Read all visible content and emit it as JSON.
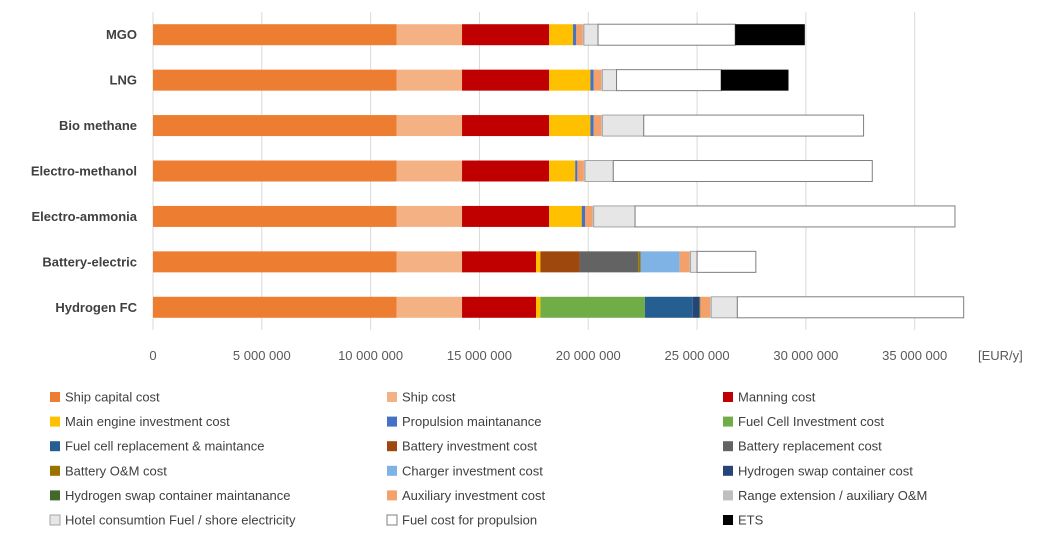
{
  "chart_data": {
    "type": "bar",
    "orientation": "horizontal",
    "stacked": true,
    "title": "",
    "xlabel": "",
    "x_unit": "[EUR/y]",
    "ylabel": "",
    "xlim": [
      0,
      38000000
    ],
    "x_ticks": [
      0,
      5000000,
      10000000,
      15000000,
      20000000,
      25000000,
      30000000,
      35000000
    ],
    "x_tick_labels": [
      "0",
      "5 000 000",
      "10 000 000",
      "15 000 000",
      "20 000 000",
      "25 000 000",
      "30 000 000",
      "35 000 000"
    ],
    "grid": "vertical",
    "legend_position": "bottom",
    "categories": [
      "MGO",
      "LNG",
      "Bio methane",
      "Electro-methanol",
      "Electro-ammonia",
      "Battery-electric",
      "Hydrogen FC"
    ],
    "series": [
      {
        "name": "Ship capital cost",
        "color": "#ED7D31",
        "border": "",
        "values": [
          11200000,
          11200000,
          11200000,
          11200000,
          11200000,
          11200000,
          11200000
        ]
      },
      {
        "name": "Ship cost",
        "color": "#F4B183",
        "border": "",
        "values": [
          3000000,
          3000000,
          3000000,
          3000000,
          3000000,
          3000000,
          3000000
        ]
      },
      {
        "name": "Manning cost",
        "color": "#C00000",
        "border": "",
        "values": [
          4000000,
          4000000,
          4000000,
          4000000,
          4000000,
          3400000,
          3400000
        ]
      },
      {
        "name": "Main engine investment cost",
        "color": "#FFC000",
        "border": "",
        "values": [
          1100000,
          1900000,
          1900000,
          1200000,
          1500000,
          200000,
          200000
        ]
      },
      {
        "name": "Propulsion maintanance",
        "color": "#4472C4",
        "border": "",
        "values": [
          150000,
          150000,
          150000,
          100000,
          150000,
          0,
          0
        ]
      },
      {
        "name": "Fuel Cell Investment cost",
        "color": "#70AD47",
        "border": "",
        "values": [
          0,
          0,
          0,
          0,
          0,
          0,
          4800000
        ]
      },
      {
        "name": "Fuel cell replacement & maintance",
        "color": "#255E91",
        "border": "",
        "values": [
          0,
          0,
          0,
          0,
          0,
          0,
          2200000
        ]
      },
      {
        "name": "Battery investment cost",
        "color": "#9E480E",
        "border": "",
        "values": [
          0,
          0,
          0,
          0,
          0,
          1800000,
          0
        ]
      },
      {
        "name": "Battery replacement cost",
        "color": "#636363",
        "border": "",
        "values": [
          0,
          0,
          0,
          0,
          0,
          2700000,
          0
        ]
      },
      {
        "name": "Battery O&M cost",
        "color": "#997300",
        "border": "",
        "values": [
          0,
          0,
          0,
          0,
          0,
          100000,
          0
        ]
      },
      {
        "name": "Charger investment cost",
        "color": "#7FB2E5",
        "border": "",
        "values": [
          0,
          0,
          0,
          0,
          0,
          1800000,
          0
        ]
      },
      {
        "name": "Hydrogen swap container cost",
        "color": "#264478",
        "border": "",
        "values": [
          0,
          0,
          0,
          0,
          0,
          0,
          300000
        ]
      },
      {
        "name": "Hydrogen swap container maintanance",
        "color": "#43682B",
        "border": "",
        "values": [
          0,
          0,
          0,
          0,
          0,
          0,
          50000
        ]
      },
      {
        "name": "Auxiliary investment cost",
        "color": "#F4A06B",
        "border": "",
        "values": [
          300000,
          350000,
          350000,
          300000,
          350000,
          450000,
          450000
        ]
      },
      {
        "name": "Range extension / auxiliary O&M",
        "color": "#BFBFBF",
        "border": "",
        "values": [
          50000,
          50000,
          50000,
          50000,
          50000,
          50000,
          50000
        ]
      },
      {
        "name": "Hotel consumtion Fuel / shore electricity",
        "color": "#E7E6E6",
        "border": "#A6A6A6",
        "values": [
          650000,
          650000,
          1900000,
          1300000,
          1900000,
          300000,
          1200000
        ]
      },
      {
        "name": "Fuel cost for propulsion",
        "color": "#FFFFFF",
        "border": "#7F7F7F",
        "values": [
          6300000,
          4800000,
          10100000,
          11900000,
          14700000,
          2700000,
          10400000
        ]
      },
      {
        "name": "ETS",
        "color": "#000000",
        "border": "",
        "values": [
          3200000,
          3100000,
          0,
          0,
          0,
          0,
          0
        ]
      }
    ]
  }
}
